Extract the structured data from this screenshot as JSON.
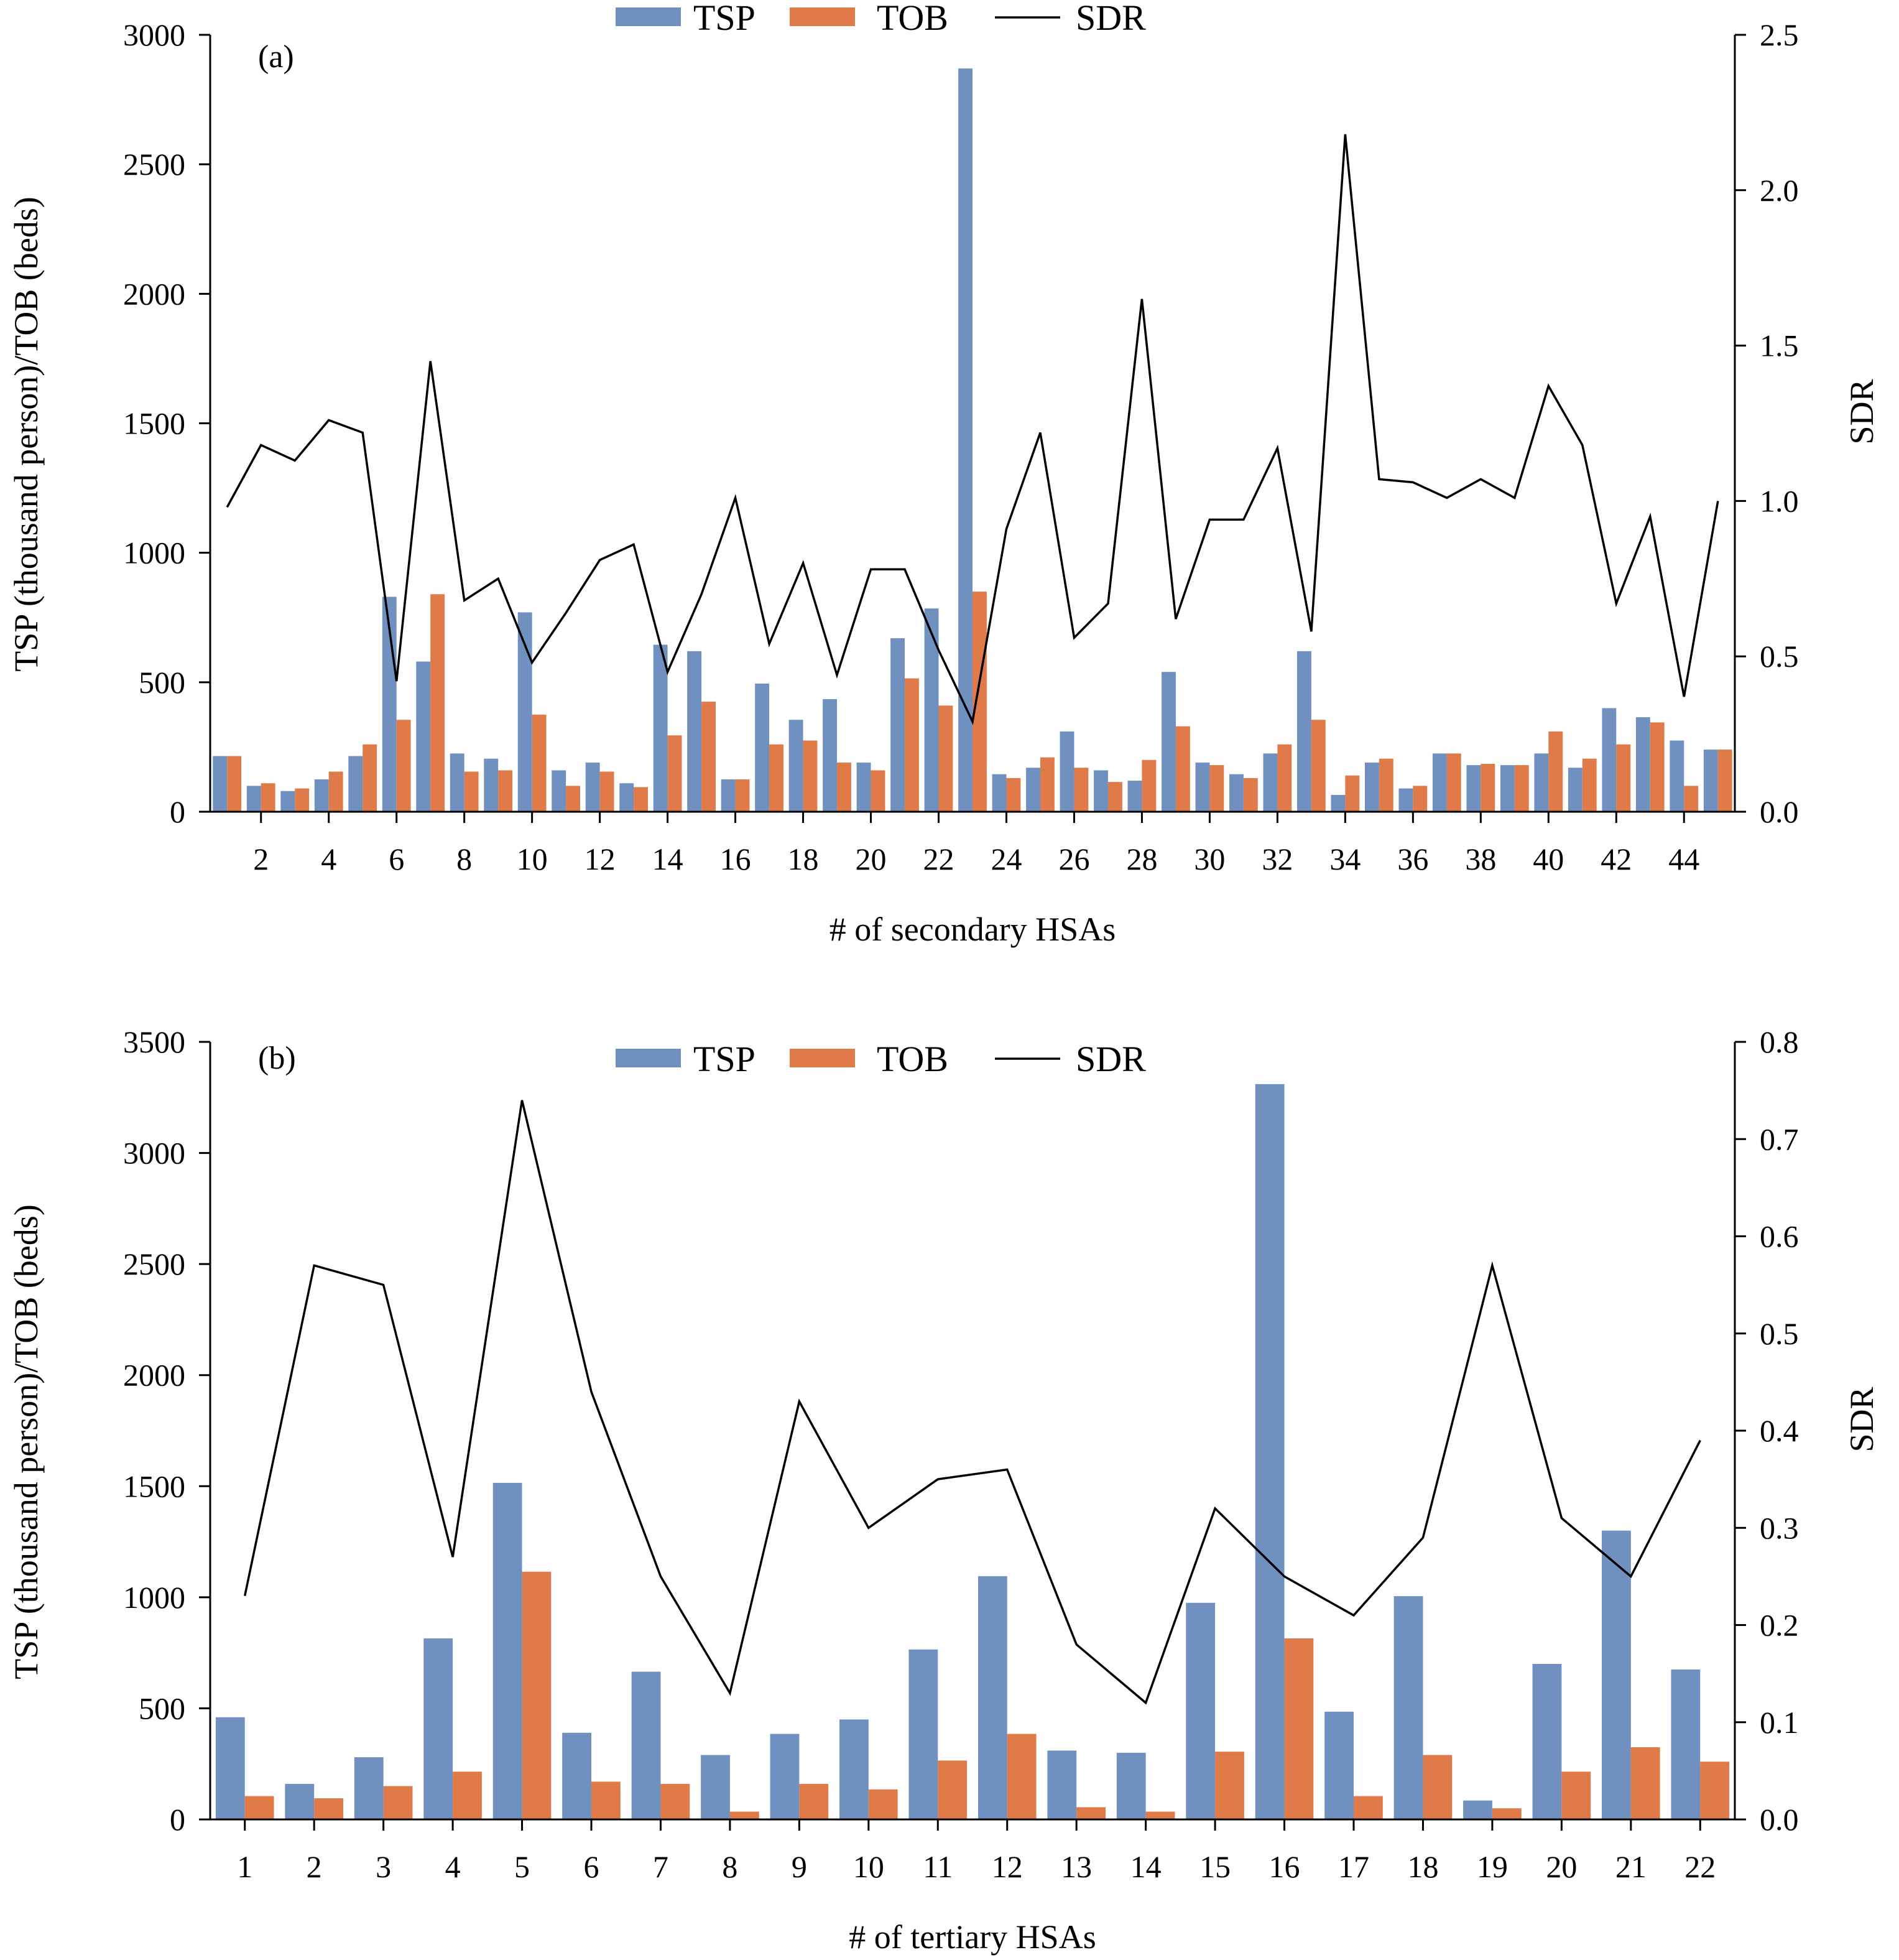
{
  "chart_data": [
    {
      "type": "bar",
      "panel_label": "(a)",
      "xlabel": "# of secondary HSAs",
      "ylabel": "TSP (thousand person)/TOB (beds)",
      "y2label": "SDR",
      "ylim": [
        0,
        3000
      ],
      "yticks": [
        0,
        500,
        1000,
        1500,
        2000,
        2500,
        3000
      ],
      "y2lim": [
        0,
        2.5
      ],
      "y2ticks": [
        "0.0",
        "0.5",
        "1.0",
        "1.5",
        "2.0",
        "2.5"
      ],
      "x": [
        1,
        2,
        3,
        4,
        5,
        6,
        7,
        8,
        9,
        10,
        11,
        12,
        13,
        14,
        15,
        16,
        17,
        18,
        19,
        20,
        21,
        22,
        23,
        24,
        25,
        26,
        27,
        28,
        29,
        30,
        31,
        32,
        33,
        34,
        35,
        36,
        37,
        38,
        39,
        40,
        41,
        42,
        43,
        44,
        45
      ],
      "xtick_labels": [
        "2",
        "4",
        "6",
        "8",
        "10",
        "12",
        "14",
        "16",
        "18",
        "20",
        "22",
        "24",
        "26",
        "28",
        "30",
        "32",
        "34",
        "36",
        "38",
        "40",
        "42",
        "44"
      ],
      "xtick_positions": [
        2,
        4,
        6,
        8,
        10,
        12,
        14,
        16,
        18,
        20,
        22,
        24,
        26,
        28,
        30,
        32,
        34,
        36,
        38,
        40,
        42,
        44
      ],
      "legend": [
        "TSP",
        "TOB",
        "SDR"
      ],
      "legend_position": "top-center",
      "colors": {
        "TSP": "#7091c0",
        "TOB": "#e07a48",
        "SDR": "#000000"
      },
      "series": [
        {
          "name": "TSP",
          "kind": "bar",
          "axis": "left",
          "values": [
            215,
            100,
            80,
            125,
            215,
            830,
            580,
            225,
            205,
            770,
            160,
            190,
            110,
            645,
            620,
            125,
            495,
            355,
            435,
            190,
            670,
            785,
            2870,
            145,
            170,
            310,
            160,
            120,
            540,
            190,
            145,
            225,
            620,
            65,
            190,
            90,
            225,
            180,
            180,
            225,
            170,
            400,
            365,
            275,
            240
          ]
        },
        {
          "name": "TOB",
          "kind": "bar",
          "axis": "left",
          "values": [
            215,
            110,
            90,
            155,
            260,
            355,
            840,
            155,
            160,
            375,
            100,
            155,
            95,
            295,
            425,
            125,
            260,
            275,
            190,
            160,
            515,
            410,
            850,
            130,
            210,
            170,
            115,
            200,
            330,
            180,
            130,
            260,
            355,
            140,
            205,
            100,
            225,
            185,
            180,
            310,
            205,
            260,
            345,
            100,
            240
          ]
        },
        {
          "name": "SDR",
          "kind": "line",
          "axis": "right",
          "values": [
            0.98,
            1.18,
            1.13,
            1.26,
            1.22,
            0.42,
            1.45,
            0.68,
            0.75,
            0.48,
            0.64,
            0.81,
            0.86,
            0.45,
            0.7,
            1.01,
            0.54,
            0.8,
            0.44,
            0.78,
            0.78,
            0.52,
            0.29,
            0.91,
            1.22,
            0.56,
            0.67,
            1.65,
            0.62,
            0.94,
            0.94,
            1.17,
            0.58,
            2.18,
            1.07,
            1.06,
            1.01,
            1.07,
            1.01,
            1.37,
            1.18,
            0.67,
            0.95,
            0.37,
            1.0
          ]
        }
      ]
    },
    {
      "type": "bar",
      "panel_label": "(b)",
      "xlabel": "# of tertiary HSAs",
      "ylabel": "TSP (thousand person)/TOB (beds)",
      "y2label": "SDR",
      "ylim": [
        0,
        3500
      ],
      "yticks": [
        0,
        500,
        1000,
        1500,
        2000,
        2500,
        3000,
        3500
      ],
      "y2lim": [
        0,
        0.8
      ],
      "y2ticks": [
        "0.0",
        "0.1",
        "0.2",
        "0.3",
        "0.4",
        "0.5",
        "0.6",
        "0.7",
        "0.8"
      ],
      "x": [
        1,
        2,
        3,
        4,
        5,
        6,
        7,
        8,
        9,
        10,
        11,
        12,
        13,
        14,
        15,
        16,
        17,
        18,
        19,
        20,
        21,
        22
      ],
      "xtick_labels": [
        "1",
        "2",
        "3",
        "4",
        "5",
        "6",
        "7",
        "8",
        "9",
        "10",
        "11",
        "12",
        "13",
        "14",
        "15",
        "16",
        "17",
        "18",
        "19",
        "20",
        "21",
        "22"
      ],
      "xtick_positions": [
        1,
        2,
        3,
        4,
        5,
        6,
        7,
        8,
        9,
        10,
        11,
        12,
        13,
        14,
        15,
        16,
        17,
        18,
        19,
        20,
        21,
        22
      ],
      "legend": [
        "TSP",
        "TOB",
        "SDR"
      ],
      "legend_position": "top-center",
      "colors": {
        "TSP": "#7091c0",
        "TOB": "#e07a48",
        "SDR": "#000000"
      },
      "series": [
        {
          "name": "TSP",
          "kind": "bar",
          "axis": "left",
          "values": [
            460,
            160,
            280,
            815,
            1515,
            390,
            665,
            290,
            385,
            450,
            765,
            1095,
            310,
            300,
            975,
            3310,
            485,
            1005,
            85,
            700,
            1300,
            675
          ]
        },
        {
          "name": "TOB",
          "kind": "bar",
          "axis": "left",
          "values": [
            105,
            95,
            150,
            215,
            1115,
            170,
            160,
            35,
            160,
            135,
            265,
            385,
            55,
            35,
            305,
            815,
            105,
            290,
            50,
            215,
            325,
            260
          ]
        },
        {
          "name": "SDR",
          "kind": "line",
          "axis": "right",
          "values": [
            0.23,
            0.57,
            0.55,
            0.27,
            0.74,
            0.44,
            0.25,
            0.13,
            0.43,
            0.3,
            0.35,
            0.36,
            0.18,
            0.12,
            0.32,
            0.25,
            0.21,
            0.29,
            0.57,
            0.31,
            0.25,
            0.39
          ]
        }
      ]
    }
  ]
}
